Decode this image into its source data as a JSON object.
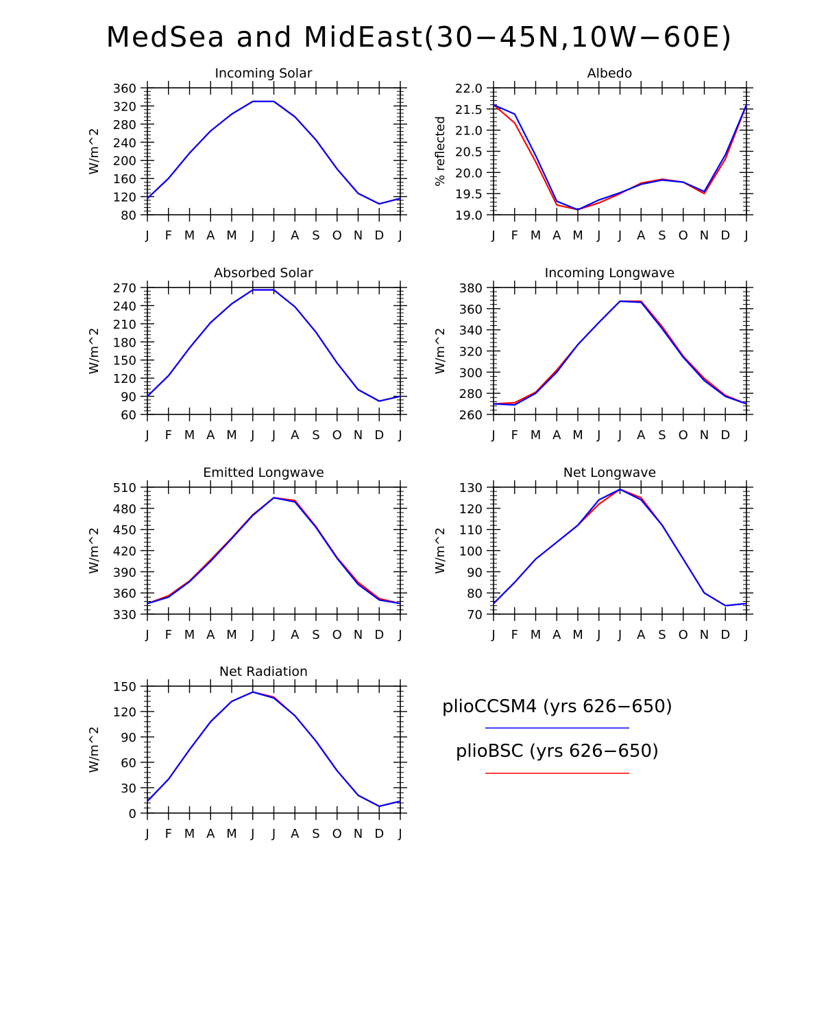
{
  "figure": {
    "title": "MedSea and MidEast(30−45N,10W−60E)"
  },
  "legend": [
    {
      "label": "plioCCSM4 (yrs 626−650)",
      "color": "#0000ff"
    },
    {
      "label": "plioBSC (yrs 626−650)",
      "color": "#ff0000"
    }
  ],
  "chart_data": [
    {
      "type": "line",
      "title": "Incoming Solar",
      "ylabel": "W/m^2",
      "xlabel": "",
      "categories": [
        "J",
        "F",
        "M",
        "A",
        "M",
        "J",
        "J",
        "A",
        "S",
        "O",
        "N",
        "D",
        "J"
      ],
      "ylim": [
        80,
        360
      ],
      "yticks": [
        80,
        120,
        160,
        200,
        240,
        280,
        320,
        360
      ],
      "ytick_labels": [
        "80",
        "120",
        "160",
        "200",
        "240",
        "280",
        "320",
        "360"
      ],
      "series": [
        {
          "name": "plioBSC (yrs 626−650)",
          "color": "#ff0000",
          "values": [
            116,
            160,
            216,
            265,
            302,
            330,
            330,
            296,
            245,
            181,
            127,
            104,
            116
          ]
        },
        {
          "name": "plioCCSM4 (yrs 626−650)",
          "color": "#0000ff",
          "values": [
            116,
            160,
            216,
            265,
            302,
            330,
            330,
            296,
            245,
            181,
            127,
            104,
            116
          ]
        }
      ]
    },
    {
      "type": "line",
      "title": "Albedo",
      "ylabel": "% reflected",
      "xlabel": "",
      "categories": [
        "J",
        "F",
        "M",
        "A",
        "M",
        "J",
        "J",
        "A",
        "S",
        "O",
        "N",
        "D",
        "J"
      ],
      "ylim": [
        19.0,
        22.0
      ],
      "yticks": [
        19.0,
        19.5,
        20.0,
        20.5,
        21.0,
        21.5,
        22.0
      ],
      "ytick_labels": [
        "19.0",
        "19.5",
        "20.0",
        "20.5",
        "21.0",
        "21.5",
        "22.0"
      ],
      "series": [
        {
          "name": "plioBSC (yrs 626−650)",
          "color": "#ff0000",
          "values": [
            21.6,
            21.17,
            20.25,
            19.23,
            19.12,
            19.28,
            19.5,
            19.75,
            19.84,
            19.77,
            19.5,
            20.32,
            21.6
          ]
        },
        {
          "name": "plioCCSM4 (yrs 626−650)",
          "color": "#0000ff",
          "values": [
            21.6,
            21.38,
            20.4,
            19.32,
            19.12,
            19.35,
            19.52,
            19.72,
            19.82,
            19.77,
            19.55,
            20.42,
            21.6
          ]
        }
      ]
    },
    {
      "type": "line",
      "title": "Absorbed Solar",
      "ylabel": "W/m^2",
      "xlabel": "",
      "categories": [
        "J",
        "F",
        "M",
        "A",
        "M",
        "J",
        "J",
        "A",
        "S",
        "O",
        "N",
        "D",
        "J"
      ],
      "ylim": [
        60,
        270
      ],
      "yticks": [
        60,
        90,
        120,
        150,
        180,
        210,
        240,
        270
      ],
      "ytick_labels": [
        "60",
        "90",
        "120",
        "150",
        "180",
        "210",
        "240",
        "270"
      ],
      "series": [
        {
          "name": "plioBSC (yrs 626−650)",
          "color": "#ff0000",
          "values": [
            90,
            124,
            170,
            212,
            243,
            266,
            266,
            238,
            196,
            145,
            101,
            82,
            90
          ]
        },
        {
          "name": "plioCCSM4 (yrs 626−650)",
          "color": "#0000ff",
          "values": [
            90,
            124,
            170,
            212,
            243,
            266,
            266,
            238,
            196,
            145,
            101,
            82,
            90
          ]
        }
      ]
    },
    {
      "type": "line",
      "title": "Incoming Longwave",
      "ylabel": "W/m^2",
      "xlabel": "",
      "categories": [
        "J",
        "F",
        "M",
        "A",
        "M",
        "J",
        "J",
        "A",
        "S",
        "O",
        "N",
        "D",
        "J"
      ],
      "ylim": [
        260,
        380
      ],
      "yticks": [
        260,
        280,
        300,
        320,
        340,
        360,
        380
      ],
      "ytick_labels": [
        "260",
        "280",
        "300",
        "320",
        "340",
        "360",
        "380"
      ],
      "series": [
        {
          "name": "plioBSC (yrs 626−650)",
          "color": "#ff0000",
          "values": [
            270,
            271,
            281,
            302,
            326,
            347,
            367,
            367,
            343,
            315,
            294,
            278,
            270
          ]
        },
        {
          "name": "plioCCSM4 (yrs 626−650)",
          "color": "#0000ff",
          "values": [
            270,
            269,
            280,
            300,
            326,
            347,
            367,
            366,
            341,
            314,
            292,
            277,
            270
          ]
        }
      ]
    },
    {
      "type": "line",
      "title": "Emitted Longwave",
      "ylabel": "W/m^2",
      "xlabel": "",
      "categories": [
        "J",
        "F",
        "M",
        "A",
        "M",
        "J",
        "J",
        "A",
        "S",
        "O",
        "N",
        "D",
        "J"
      ],
      "ylim": [
        330,
        510
      ],
      "yticks": [
        330,
        360,
        390,
        420,
        450,
        480,
        510
      ],
      "ytick_labels": [
        "330",
        "360",
        "390",
        "420",
        "450",
        "480",
        "510"
      ],
      "series": [
        {
          "name": "plioBSC (yrs 626−650)",
          "color": "#ff0000",
          "values": [
            345,
            356,
            377,
            407,
            438,
            471,
            495,
            491,
            454,
            410,
            375,
            352,
            345
          ]
        },
        {
          "name": "plioCCSM4 (yrs 626−650)",
          "color": "#0000ff",
          "values": [
            345,
            354,
            376,
            405,
            437,
            470,
            495,
            489,
            453,
            409,
            372,
            350,
            345
          ]
        }
      ]
    },
    {
      "type": "line",
      "title": "Net Longwave",
      "ylabel": "W/m^2",
      "xlabel": "",
      "categories": [
        "J",
        "F",
        "M",
        "A",
        "M",
        "J",
        "J",
        "A",
        "S",
        "O",
        "N",
        "D",
        "J"
      ],
      "ylim": [
        70,
        130
      ],
      "yticks": [
        70,
        80,
        90,
        100,
        110,
        120,
        130
      ],
      "ytick_labels": [
        "70",
        "80",
        "90",
        "100",
        "110",
        "120",
        "130"
      ],
      "series": [
        {
          "name": "plioBSC (yrs 626−650)",
          "color": "#ff0000",
          "values": [
            75,
            85,
            96,
            104,
            112,
            122,
            129,
            125,
            112,
            96,
            80,
            74,
            75
          ]
        },
        {
          "name": "plioCCSM4 (yrs 626−650)",
          "color": "#0000ff",
          "values": [
            75,
            85,
            96,
            104,
            112,
            124,
            129,
            124,
            112,
            96,
            80,
            74,
            75
          ]
        }
      ]
    },
    {
      "type": "line",
      "title": "Net Radiation",
      "ylabel": "W/m^2",
      "xlabel": "",
      "categories": [
        "J",
        "F",
        "M",
        "A",
        "M",
        "J",
        "J",
        "A",
        "S",
        "O",
        "N",
        "D",
        "J"
      ],
      "ylim": [
        0,
        150
      ],
      "yticks": [
        0,
        30,
        60,
        90,
        120,
        150
      ],
      "ytick_labels": [
        "0",
        "30",
        "60",
        "90",
        "120",
        "150"
      ],
      "series": [
        {
          "name": "plioBSC (yrs 626−650)",
          "color": "#ff0000",
          "values": [
            14,
            40,
            75,
            108,
            132,
            143,
            137,
            115,
            85,
            50,
            21,
            8,
            14
          ]
        },
        {
          "name": "plioCCSM4 (yrs 626−650)",
          "color": "#0000ff",
          "values": [
            14,
            40,
            75,
            108,
            132,
            143,
            136,
            115,
            85,
            50,
            21,
            8,
            14
          ]
        }
      ]
    }
  ]
}
